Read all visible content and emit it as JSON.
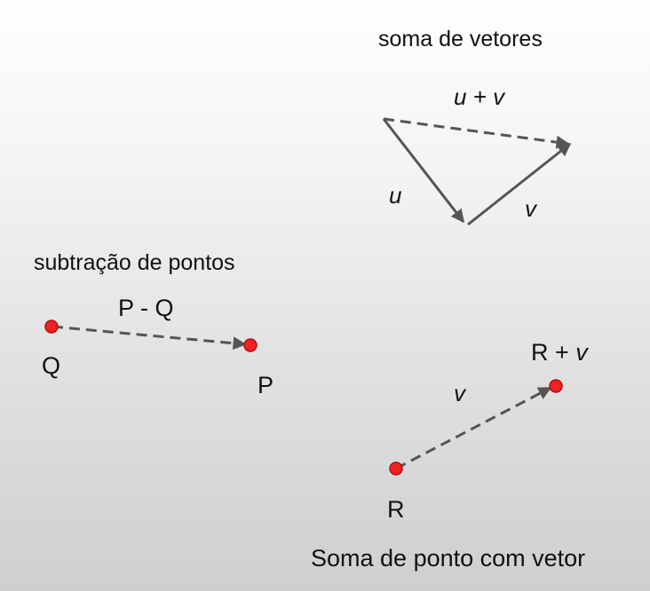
{
  "sections": {
    "vector_sum": {
      "title": "soma de vetores",
      "sum_label": "u + v",
      "u_label": "u",
      "v_label": "v"
    },
    "point_subtraction": {
      "title": "subtração de pontos",
      "vector_label": "P - Q",
      "q_label": "Q",
      "p_label": "P"
    },
    "point_plus_vector": {
      "title": "Soma de ponto com vetor",
      "result_label": "R + v",
      "v_label": "v",
      "r_label": "R"
    }
  },
  "colors": {
    "arrow": "#555555",
    "point_fill": "#ee2222",
    "point_stroke": "#b31010"
  }
}
